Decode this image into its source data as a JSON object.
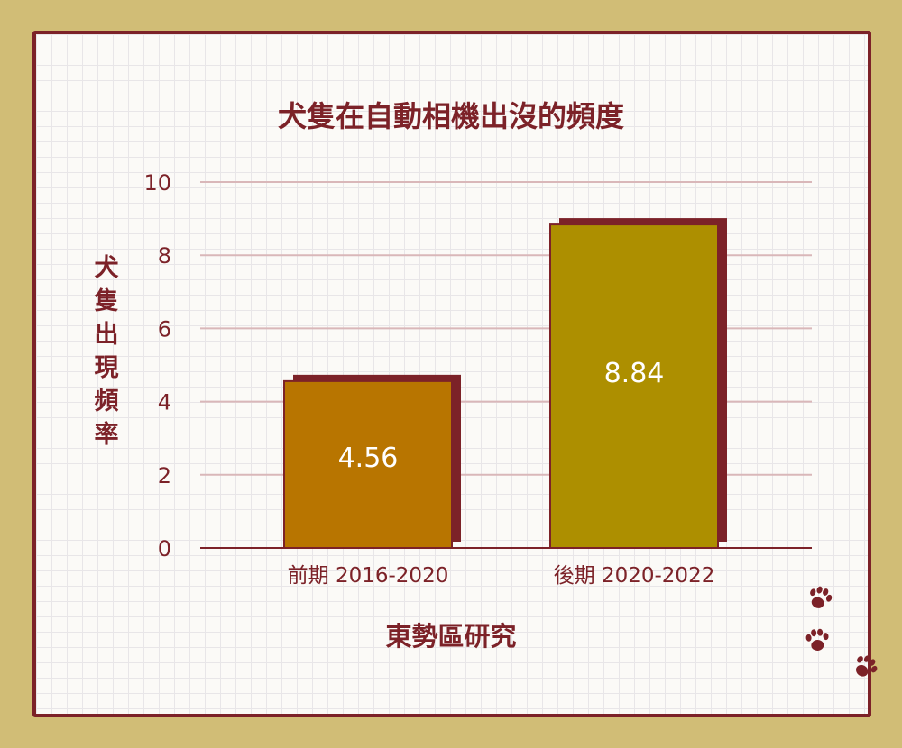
{
  "colors": {
    "background": "#d1bd76",
    "card": "#fbfaf7",
    "accent": "#7c2228",
    "grid": "#d9b7b9",
    "bar_early": "#b87500",
    "bar_late": "#ad8f00",
    "label_text": "#ffffff"
  },
  "decor": {
    "icons": [
      "paw-print-icon",
      "paw-print-icon",
      "paw-print-icon"
    ]
  },
  "chart_data": {
    "type": "bar",
    "title": "犬隻在自動相機出沒的頻度",
    "xlabel": "東勢區研究",
    "ylabel": "犬隻出現頻率",
    "categories": [
      "前期 2016-2020",
      "後期 2020-2022"
    ],
    "values": [
      4.56,
      8.84
    ],
    "value_labels": [
      "4.56",
      "8.84"
    ],
    "ylim": [
      0,
      10
    ],
    "yticks": [
      "0",
      "2",
      "4",
      "6",
      "8",
      "10"
    ],
    "grid": true,
    "legend": "none"
  }
}
